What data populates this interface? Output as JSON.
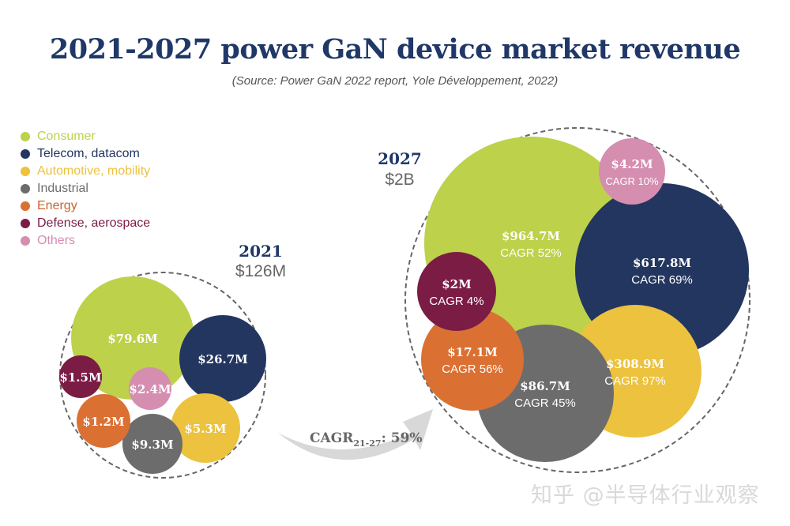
{
  "chart_data": {
    "type": "bubble",
    "title": "2021-2027 power GaN device market revenue",
    "subtitle": "(Source: Power GaN 2022 report, Yole Développement, 2022)",
    "legend_position": "top-left",
    "categories": [
      {
        "name": "Consumer",
        "color": "#bdd14b"
      },
      {
        "name": "Telecom, datacom",
        "color": "#233660"
      },
      {
        "name": "Automotive, mobility",
        "color": "#ecc23f"
      },
      {
        "name": "Industrial",
        "color": "#6c6c6d"
      },
      {
        "name": "Energy",
        "color": "#db7033"
      },
      {
        "name": "Defense, aerospace",
        "color": "#7b1c45"
      },
      {
        "name": "Others",
        "color": "#d58db0"
      }
    ],
    "years": [
      {
        "year": "2021",
        "total": "$126M",
        "values": [
          "$79.6M",
          "$26.7M",
          "$5.3M",
          "$9.3M",
          "$1.2M",
          "$1.5M",
          "$2.4M"
        ],
        "values_musd": [
          79.6,
          26.7,
          5.3,
          9.3,
          1.2,
          1.5,
          2.4
        ]
      },
      {
        "year": "2027",
        "total": "$2B",
        "values": [
          "$964.7M",
          "$617.8M",
          "$308.9M",
          "$86.7M",
          "$17.1M",
          "$2M",
          "$4.2M"
        ],
        "values_musd": [
          964.7,
          617.8,
          308.9,
          86.7,
          17.1,
          2,
          4.2
        ],
        "cagr": [
          "CAGR 52%",
          "CAGR 69%",
          "CAGR 97%",
          "CAGR 45%",
          "CAGR 56%",
          "CAGR 4%",
          "CAGR 10%"
        ]
      }
    ],
    "overall_cagr": {
      "label": "CAGR",
      "sub": "21-27",
      "value": ": 59%"
    }
  },
  "watermark": "知乎 @半导体行业观察"
}
